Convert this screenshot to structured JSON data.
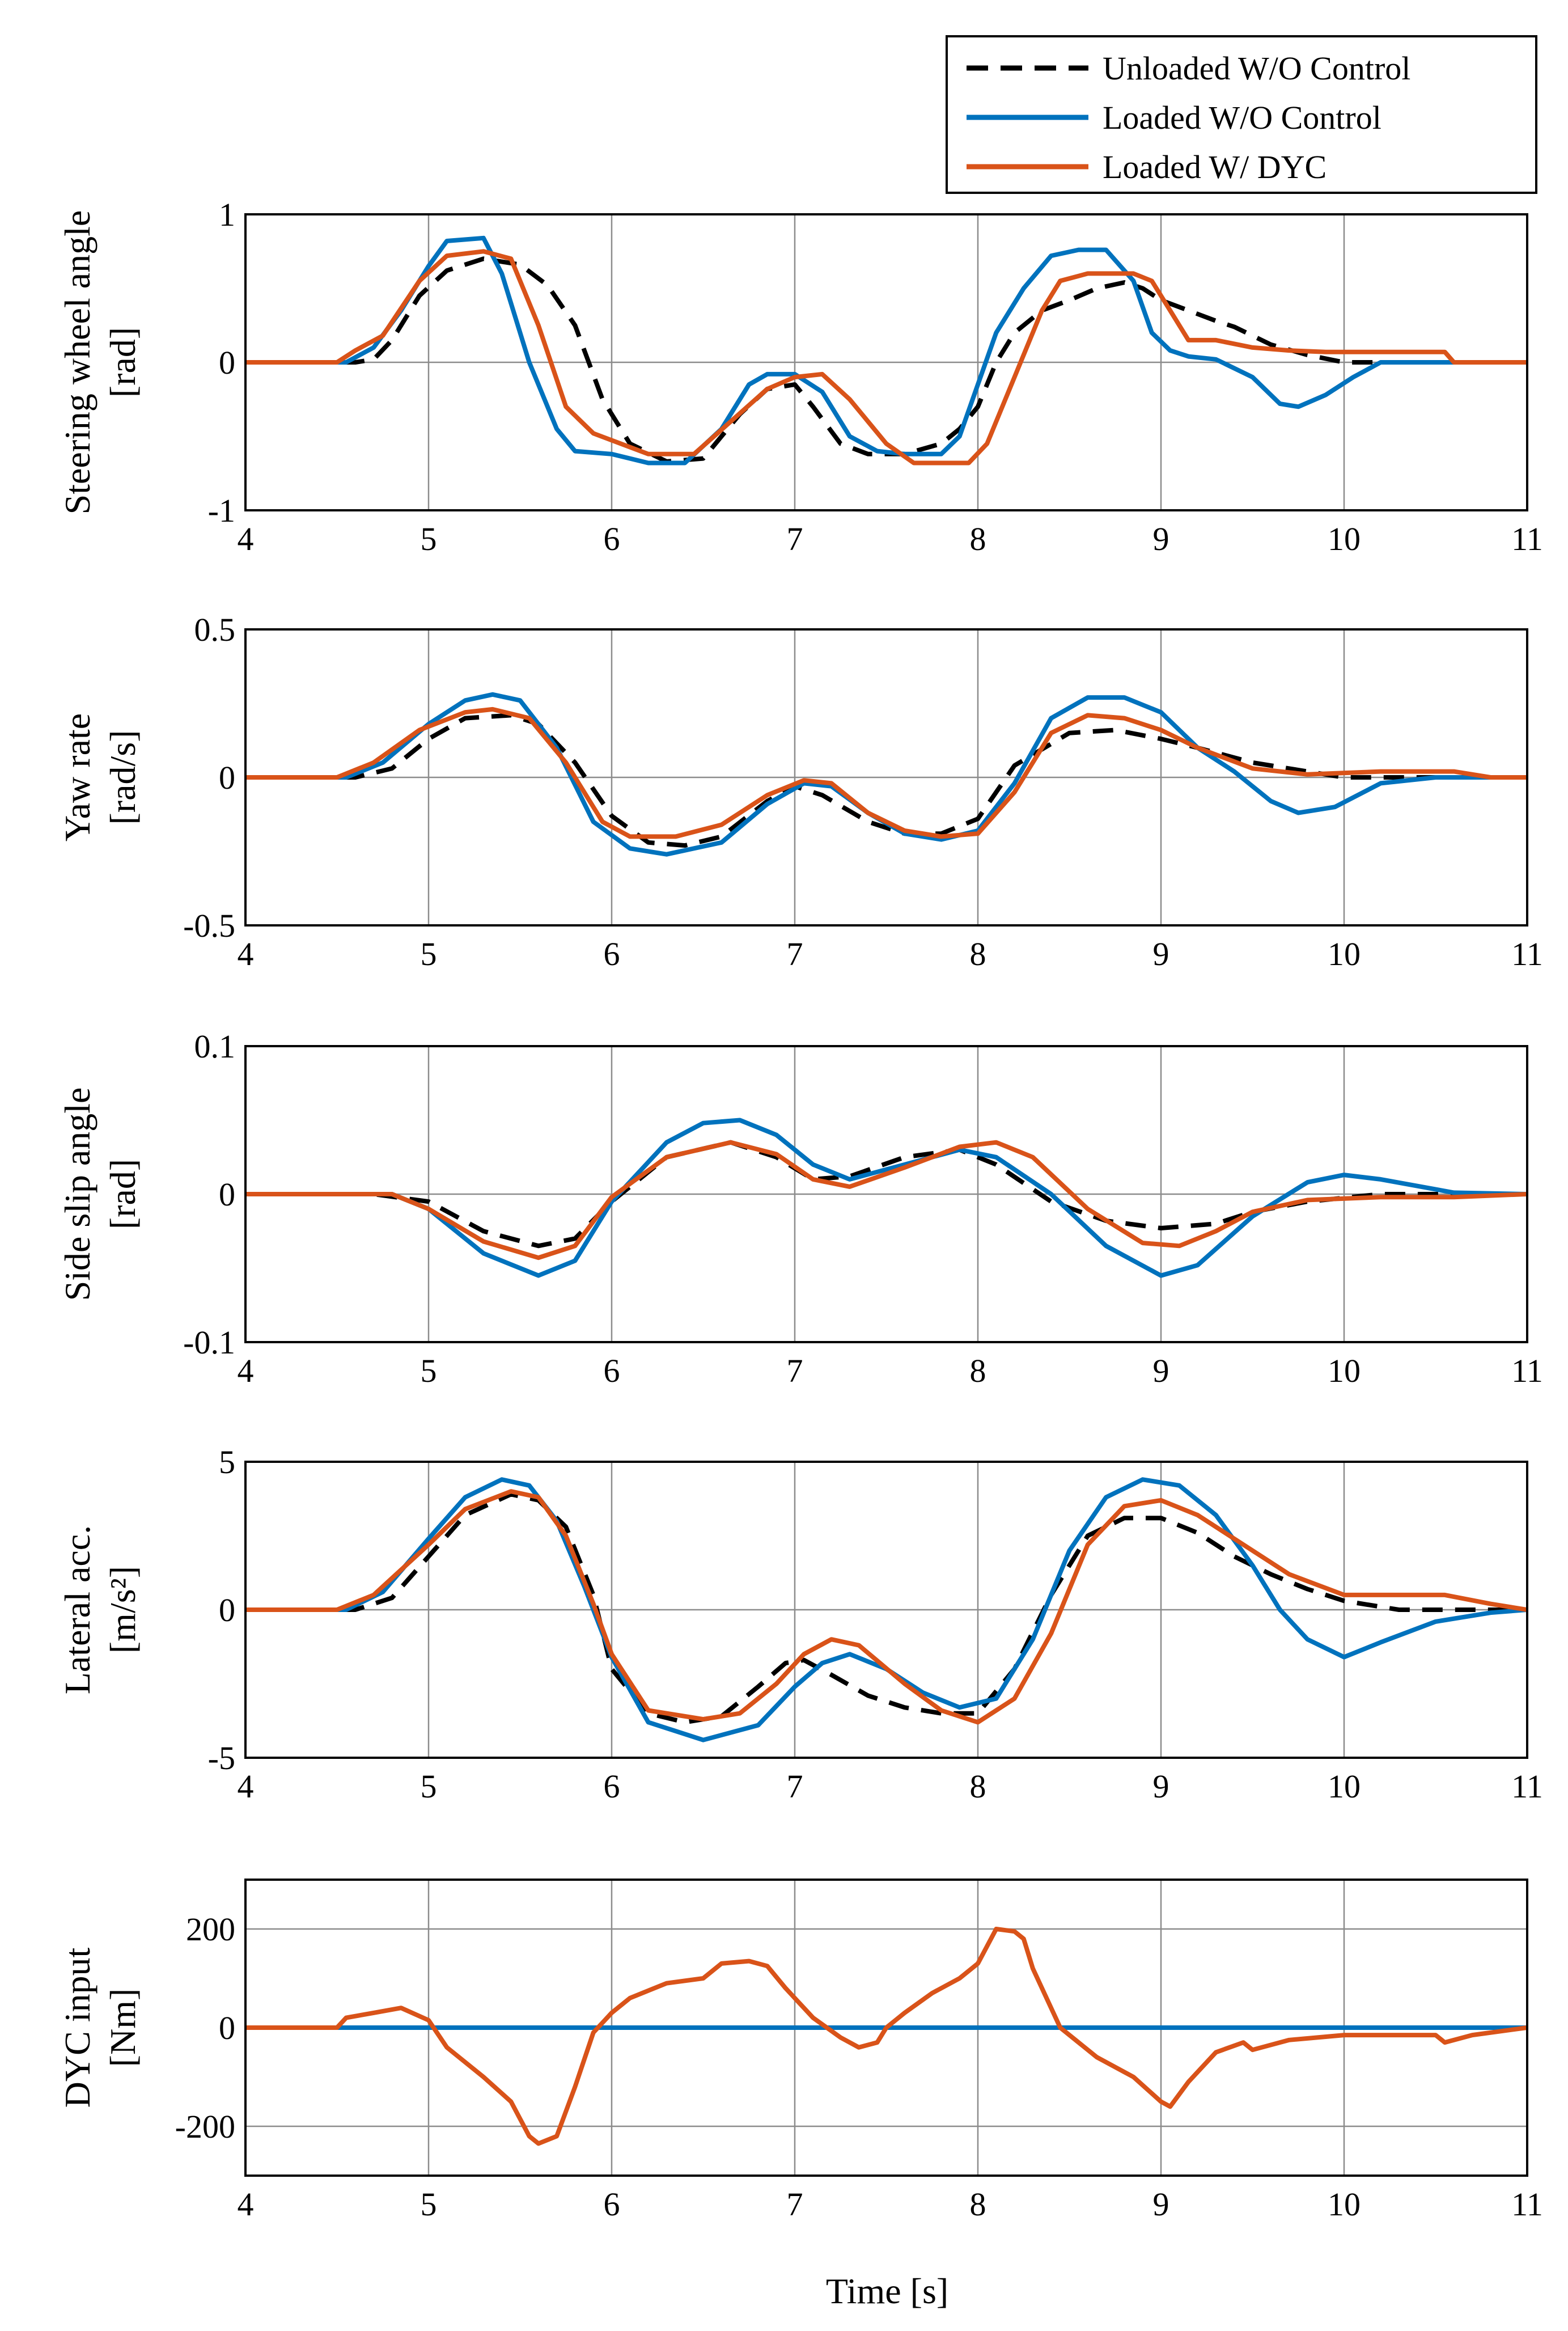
{
  "legend": [
    {
      "name": "Unloaded W/O Control",
      "color": "#000000",
      "dash": "dashed"
    },
    {
      "name": "Loaded W/O Control",
      "color": "#0072BD",
      "dash": "solid"
    },
    {
      "name": "Loaded W/ DYC",
      "color": "#D95319",
      "dash": "solid"
    }
  ],
  "xlabel": "Time [s]",
  "chart_data": [
    {
      "type": "line",
      "ylabel_lines": [
        "Steering wheel angle",
        "[rad]"
      ],
      "xlim": [
        4,
        11
      ],
      "ylim": [
        -1,
        1
      ],
      "xticks": [
        4,
        5,
        6,
        7,
        8,
        9,
        10,
        11
      ],
      "yticks": [
        -1,
        0,
        1
      ],
      "series": [
        {
          "name": "Unloaded W/O Control",
          "x": [
            4,
            4.6,
            4.7,
            4.8,
            4.95,
            5.1,
            5.3,
            5.5,
            5.65,
            5.8,
            5.95,
            6.1,
            6.3,
            6.5,
            6.7,
            6.85,
            7.0,
            7.1,
            7.25,
            7.4,
            7.6,
            7.8,
            7.9,
            8.0,
            8.1,
            8.2,
            8.35,
            8.5,
            8.65,
            8.8,
            8.9,
            9.0,
            9.15,
            9.3,
            9.4,
            9.6,
            9.8,
            10.0,
            10.5,
            11
          ],
          "y": [
            0,
            0,
            0.02,
            0.15,
            0.45,
            0.62,
            0.7,
            0.66,
            0.52,
            0.25,
            -0.25,
            -0.55,
            -0.67,
            -0.65,
            -0.35,
            -0.18,
            -0.15,
            -0.3,
            -0.55,
            -0.62,
            -0.62,
            -0.55,
            -0.45,
            -0.3,
            0.0,
            0.2,
            0.35,
            0.42,
            0.5,
            0.54,
            0.5,
            0.42,
            0.35,
            0.28,
            0.24,
            0.12,
            0.05,
            0.0,
            0.0,
            0
          ]
        },
        {
          "name": "Loaded W/O Control",
          "x": [
            4,
            4.55,
            4.7,
            4.85,
            5.0,
            5.1,
            5.3,
            5.4,
            5.55,
            5.7,
            5.8,
            6.0,
            6.2,
            6.4,
            6.6,
            6.75,
            6.85,
            7.0,
            7.15,
            7.3,
            7.45,
            7.6,
            7.8,
            7.9,
            8.0,
            8.1,
            8.25,
            8.4,
            8.55,
            8.7,
            8.85,
            8.95,
            9.05,
            9.15,
            9.3,
            9.5,
            9.65,
            9.75,
            9.9,
            10.05,
            10.2,
            10.5,
            11
          ],
          "y": [
            0,
            0,
            0.1,
            0.35,
            0.65,
            0.82,
            0.84,
            0.6,
            0.0,
            -0.45,
            -0.6,
            -0.62,
            -0.68,
            -0.68,
            -0.45,
            -0.15,
            -0.08,
            -0.08,
            -0.2,
            -0.5,
            -0.6,
            -0.62,
            -0.62,
            -0.5,
            -0.15,
            0.2,
            0.5,
            0.72,
            0.76,
            0.76,
            0.55,
            0.2,
            0.08,
            0.04,
            0.02,
            -0.1,
            -0.28,
            -0.3,
            -0.22,
            -0.1,
            0.0,
            0.0,
            0
          ]
        },
        {
          "name": "Loaded W/ DYC",
          "x": [
            4,
            4.5,
            4.6,
            4.75,
            4.95,
            5.1,
            5.3,
            5.45,
            5.6,
            5.75,
            5.9,
            6.05,
            6.2,
            6.45,
            6.65,
            6.85,
            7.0,
            7.15,
            7.3,
            7.5,
            7.65,
            7.8,
            7.95,
            8.05,
            8.2,
            8.35,
            8.45,
            8.6,
            8.75,
            8.85,
            8.95,
            9.05,
            9.15,
            9.3,
            9.5,
            9.7,
            9.9,
            10.1,
            10.3,
            10.55,
            10.6,
            11
          ],
          "y": [
            0,
            0,
            0.08,
            0.18,
            0.55,
            0.72,
            0.75,
            0.7,
            0.25,
            -0.3,
            -0.48,
            -0.55,
            -0.62,
            -0.62,
            -0.4,
            -0.18,
            -0.1,
            -0.08,
            -0.25,
            -0.55,
            -0.68,
            -0.68,
            -0.68,
            -0.55,
            -0.1,
            0.35,
            0.55,
            0.6,
            0.6,
            0.6,
            0.55,
            0.35,
            0.15,
            0.15,
            0.1,
            0.08,
            0.07,
            0.07,
            0.07,
            0.07,
            0.0,
            0
          ]
        }
      ]
    },
    {
      "type": "line",
      "ylabel_lines": [
        "Yaw rate",
        "[rad/s]"
      ],
      "xlim": [
        4,
        11
      ],
      "ylim": [
        -0.5,
        0.5
      ],
      "xticks": [
        4,
        5,
        6,
        7,
        8,
        9,
        10,
        11
      ],
      "yticks": [
        -0.5,
        0,
        0.5
      ],
      "series": [
        {
          "name": "Unloaded W/O Control",
          "x": [
            4,
            4.6,
            4.8,
            5.0,
            5.2,
            5.45,
            5.6,
            5.8,
            6.0,
            6.2,
            6.4,
            6.6,
            6.85,
            7.0,
            7.15,
            7.4,
            7.6,
            7.8,
            8.0,
            8.2,
            8.5,
            8.75,
            9.0,
            9.2,
            9.5,
            9.8,
            10.0,
            10.5,
            11
          ],
          "y": [
            0,
            0,
            0.03,
            0.13,
            0.2,
            0.21,
            0.18,
            0.05,
            -0.13,
            -0.22,
            -0.23,
            -0.2,
            -0.08,
            -0.03,
            -0.06,
            -0.15,
            -0.19,
            -0.19,
            -0.14,
            0.04,
            0.15,
            0.16,
            0.13,
            0.1,
            0.05,
            0.02,
            0.0,
            0.0,
            0
          ]
        },
        {
          "name": "Loaded W/O Control",
          "x": [
            4,
            4.55,
            4.75,
            5.0,
            5.2,
            5.35,
            5.5,
            5.7,
            5.9,
            6.1,
            6.3,
            6.6,
            6.85,
            7.05,
            7.2,
            7.4,
            7.6,
            7.8,
            8.0,
            8.2,
            8.4,
            8.6,
            8.8,
            9.0,
            9.2,
            9.4,
            9.6,
            9.75,
            9.95,
            10.2,
            10.5,
            11
          ],
          "y": [
            0,
            0,
            0.05,
            0.18,
            0.26,
            0.28,
            0.26,
            0.1,
            -0.15,
            -0.24,
            -0.26,
            -0.22,
            -0.09,
            -0.02,
            -0.03,
            -0.12,
            -0.19,
            -0.21,
            -0.18,
            -0.02,
            0.2,
            0.27,
            0.27,
            0.22,
            0.1,
            0.02,
            -0.08,
            -0.12,
            -0.1,
            -0.02,
            0.0,
            0
          ]
        },
        {
          "name": "Loaded W/ DYC",
          "x": [
            4,
            4.5,
            4.7,
            4.95,
            5.2,
            5.35,
            5.55,
            5.75,
            5.95,
            6.1,
            6.35,
            6.6,
            6.85,
            7.05,
            7.2,
            7.4,
            7.6,
            7.8,
            8.0,
            8.2,
            8.4,
            8.6,
            8.8,
            9.0,
            9.2,
            9.5,
            9.8,
            10.2,
            10.6,
            10.8,
            11
          ],
          "y": [
            0,
            0,
            0.05,
            0.16,
            0.22,
            0.23,
            0.2,
            0.05,
            -0.15,
            -0.2,
            -0.2,
            -0.16,
            -0.06,
            -0.01,
            -0.02,
            -0.12,
            -0.18,
            -0.2,
            -0.19,
            -0.05,
            0.15,
            0.21,
            0.2,
            0.16,
            0.1,
            0.03,
            0.01,
            0.02,
            0.02,
            0.0,
            0
          ]
        }
      ]
    },
    {
      "type": "line",
      "ylabel_lines": [
        "Side slip angle",
        "[rad]"
      ],
      "xlim": [
        4,
        11
      ],
      "ylim": [
        -0.1,
        0.1
      ],
      "xticks": [
        4,
        5,
        6,
        7,
        8,
        9,
        10,
        11
      ],
      "yticks": [
        -0.1,
        0,
        0.1
      ],
      "series": [
        {
          "name": "Unloaded W/O Control",
          "x": [
            4,
            4.7,
            5.0,
            5.3,
            5.6,
            5.8,
            6.0,
            6.3,
            6.65,
            6.9,
            7.1,
            7.3,
            7.6,
            7.9,
            8.1,
            8.4,
            8.7,
            9.0,
            9.3,
            9.5,
            9.8,
            10.2,
            10.6,
            11
          ],
          "y": [
            0,
            0,
            -0.005,
            -0.025,
            -0.035,
            -0.03,
            -0.005,
            0.025,
            0.035,
            0.025,
            0.01,
            0.012,
            0.025,
            0.03,
            0.02,
            -0.005,
            -0.018,
            -0.023,
            -0.02,
            -0.012,
            -0.005,
            0.0,
            0.0,
            0
          ]
        },
        {
          "name": "Loaded W/O Control",
          "x": [
            4,
            4.8,
            5.0,
            5.3,
            5.6,
            5.8,
            6.0,
            6.3,
            6.5,
            6.7,
            6.9,
            7.1,
            7.3,
            7.6,
            7.9,
            8.1,
            8.4,
            8.7,
            9.0,
            9.2,
            9.5,
            9.8,
            10.0,
            10.2,
            10.6,
            11
          ],
          "y": [
            0,
            0,
            -0.01,
            -0.04,
            -0.055,
            -0.045,
            -0.005,
            0.035,
            0.048,
            0.05,
            0.04,
            0.02,
            0.01,
            0.02,
            0.03,
            0.025,
            0.0,
            -0.035,
            -0.055,
            -0.048,
            -0.015,
            0.008,
            0.013,
            0.01,
            0.001,
            0
          ]
        },
        {
          "name": "Loaded W/ DYC",
          "x": [
            4,
            4.8,
            5.0,
            5.3,
            5.6,
            5.8,
            6.0,
            6.3,
            6.65,
            6.9,
            7.1,
            7.3,
            7.6,
            7.9,
            8.1,
            8.3,
            8.6,
            8.9,
            9.1,
            9.3,
            9.5,
            9.8,
            10.2,
            10.6,
            11
          ],
          "y": [
            0,
            0,
            -0.01,
            -0.032,
            -0.043,
            -0.035,
            -0.002,
            0.025,
            0.035,
            0.027,
            0.01,
            0.005,
            0.018,
            0.032,
            0.035,
            0.025,
            -0.01,
            -0.033,
            -0.035,
            -0.025,
            -0.012,
            -0.004,
            -0.002,
            -0.002,
            0
          ]
        }
      ]
    },
    {
      "type": "line",
      "ylabel_lines": [
        "Lateral acc.",
        "[m/s²]"
      ],
      "xlim": [
        4,
        11
      ],
      "ylim": [
        -5,
        5
      ],
      "xticks": [
        4,
        5,
        6,
        7,
        8,
        9,
        10,
        11
      ],
      "yticks": [
        -5,
        0,
        5
      ],
      "series": [
        {
          "name": "Unloaded W/O Control",
          "x": [
            4,
            4.6,
            4.8,
            5.0,
            5.2,
            5.45,
            5.6,
            5.75,
            5.9,
            6.0,
            6.2,
            6.4,
            6.6,
            6.8,
            6.95,
            7.05,
            7.2,
            7.4,
            7.6,
            7.8,
            8.0,
            8.2,
            8.4,
            8.6,
            8.8,
            9.0,
            9.2,
            9.4,
            9.6,
            9.8,
            10.0,
            10.3,
            10.6,
            11
          ],
          "y": [
            0,
            0,
            0.4,
            1.8,
            3.2,
            3.9,
            3.7,
            2.8,
            0.5,
            -2.0,
            -3.5,
            -3.8,
            -3.6,
            -2.6,
            -1.8,
            -1.7,
            -2.2,
            -2.9,
            -3.3,
            -3.5,
            -3.5,
            -2.0,
            0.5,
            2.5,
            3.1,
            3.1,
            2.6,
            1.8,
            1.2,
            0.7,
            0.3,
            0.0,
            0.0,
            0
          ]
        },
        {
          "name": "Loaded W/O Control",
          "x": [
            4,
            4.55,
            4.75,
            5.0,
            5.2,
            5.4,
            5.55,
            5.7,
            5.85,
            6.0,
            6.2,
            6.5,
            6.8,
            7.0,
            7.15,
            7.3,
            7.5,
            7.7,
            7.9,
            8.1,
            8.3,
            8.5,
            8.7,
            8.9,
            9.1,
            9.3,
            9.5,
            9.65,
            9.8,
            10.0,
            10.2,
            10.5,
            10.8,
            11
          ],
          "y": [
            0,
            0,
            0.6,
            2.4,
            3.8,
            4.4,
            4.2,
            3.0,
            0.8,
            -1.6,
            -3.8,
            -4.4,
            -3.9,
            -2.6,
            -1.8,
            -1.5,
            -2.0,
            -2.8,
            -3.3,
            -3.0,
            -1.0,
            2.0,
            3.8,
            4.4,
            4.2,
            3.2,
            1.5,
            0.0,
            -1.0,
            -1.6,
            -1.1,
            -0.4,
            -0.1,
            0
          ]
        },
        {
          "name": "Loaded W/ DYC",
          "x": [
            4,
            4.5,
            4.7,
            5.0,
            5.2,
            5.45,
            5.6,
            5.75,
            5.9,
            6.0,
            6.2,
            6.5,
            6.7,
            6.9,
            7.05,
            7.2,
            7.35,
            7.6,
            7.8,
            8.0,
            8.2,
            8.4,
            8.6,
            8.8,
            9.0,
            9.2,
            9.5,
            9.7,
            10.0,
            10.3,
            10.55,
            10.8,
            11
          ],
          "y": [
            0,
            0,
            0.5,
            2.2,
            3.4,
            4.0,
            3.8,
            2.5,
            0.2,
            -1.5,
            -3.4,
            -3.7,
            -3.5,
            -2.5,
            -1.5,
            -1.0,
            -1.2,
            -2.5,
            -3.4,
            -3.8,
            -3.0,
            -0.8,
            2.2,
            3.5,
            3.7,
            3.2,
            2.0,
            1.2,
            0.5,
            0.5,
            0.5,
            0.2,
            0
          ]
        }
      ]
    },
    {
      "type": "line",
      "ylabel_lines": [
        "DYC input",
        "[Nm]"
      ],
      "xlim": [
        4,
        11
      ],
      "ylim": [
        -300,
        300
      ],
      "xticks": [
        4,
        5,
        6,
        7,
        8,
        9,
        10,
        11
      ],
      "yticks": [
        -200,
        0,
        200
      ],
      "series": [
        {
          "name": "Loaded W/O Control",
          "x": [
            4,
            11
          ],
          "y": [
            0,
            0
          ]
        },
        {
          "name": "Loaded W/ DYC",
          "x": [
            4,
            4.5,
            4.55,
            4.7,
            4.85,
            5.0,
            5.1,
            5.3,
            5.45,
            5.55,
            5.6,
            5.7,
            5.8,
            5.9,
            6.0,
            6.1,
            6.3,
            6.5,
            6.6,
            6.75,
            6.85,
            6.95,
            7.1,
            7.25,
            7.35,
            7.45,
            7.5,
            7.6,
            7.75,
            7.9,
            8.0,
            8.1,
            8.2,
            8.25,
            8.3,
            8.45,
            8.65,
            8.85,
            9.0,
            9.05,
            9.15,
            9.3,
            9.45,
            9.5,
            9.55,
            9.7,
            10.0,
            10.5,
            10.55,
            10.7,
            11
          ],
          "y": [
            0,
            0,
            20,
            30,
            40,
            15,
            -40,
            -100,
            -150,
            -220,
            -235,
            -220,
            -120,
            -10,
            30,
            60,
            90,
            100,
            130,
            135,
            125,
            80,
            20,
            -20,
            -40,
            -30,
            0,
            30,
            70,
            100,
            130,
            200,
            195,
            180,
            120,
            0,
            -60,
            -100,
            -150,
            -160,
            -110,
            -50,
            -30,
            -45,
            -40,
            -25,
            -15,
            -15,
            -30,
            -15,
            0
          ]
        }
      ]
    }
  ]
}
